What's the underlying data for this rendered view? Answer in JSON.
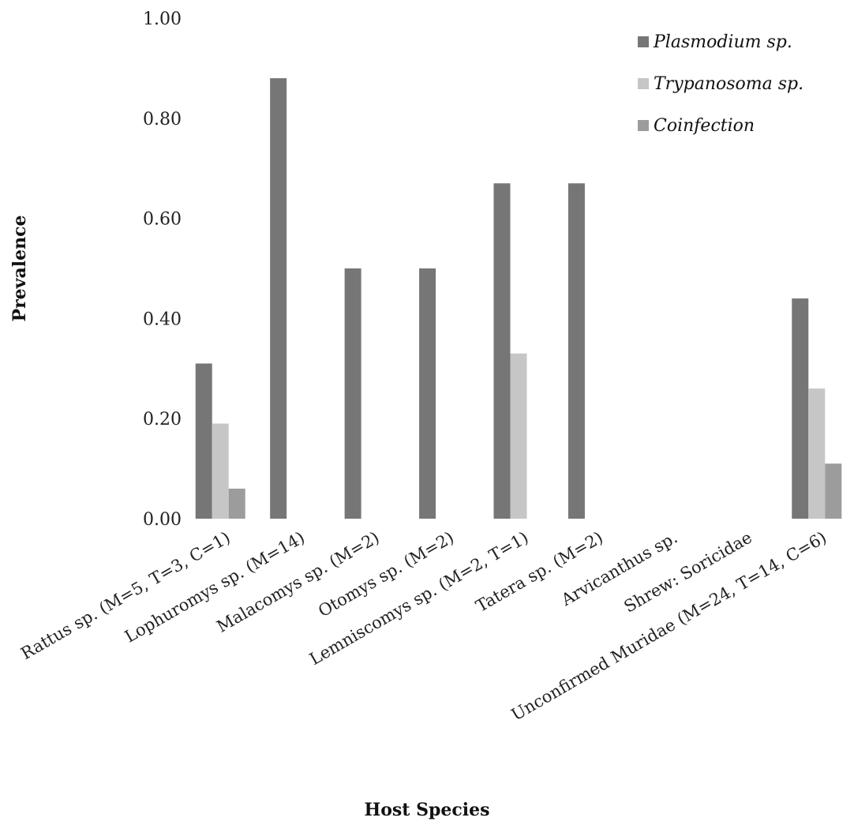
{
  "chart_data": {
    "type": "bar",
    "categories": [
      "Rattus sp. (M=5, T=3, C=1)",
      "Lophuromys sp. (M=14)",
      "Malacomys sp. (M=2)",
      "Otomys sp. (M=2)",
      "Lemniscomys sp. (M=2, T=1)",
      "Tatera sp. (M=2)",
      "Arvicanthus sp.",
      "Shrew: Soricidae",
      "Unconfirmed Muridae (M=24, T=14, C=6)"
    ],
    "series": [
      {
        "name": "Plasmodium sp.",
        "color": "#767676",
        "values": [
          0.31,
          0.88,
          0.5,
          0.5,
          0.67,
          0.67,
          0,
          0,
          0.44
        ]
      },
      {
        "name": "Trypanosoma sp.",
        "color": "#c6c6c6",
        "values": [
          0.19,
          0,
          0,
          0,
          0.33,
          0,
          0,
          0,
          0.26
        ]
      },
      {
        "name": "Coinfection",
        "color": "#9c9c9c",
        "values": [
          0.06,
          0,
          0,
          0,
          0,
          0,
          0,
          0,
          0.11
        ]
      }
    ],
    "yticks": [
      "0.00",
      "0.20",
      "0.40",
      "0.60",
      "0.80",
      "1.00"
    ],
    "ylim": [
      0,
      1
    ],
    "xlabel": "Host Species",
    "ylabel": "Prevalence",
    "legend_position": "top-right",
    "grid": false
  }
}
